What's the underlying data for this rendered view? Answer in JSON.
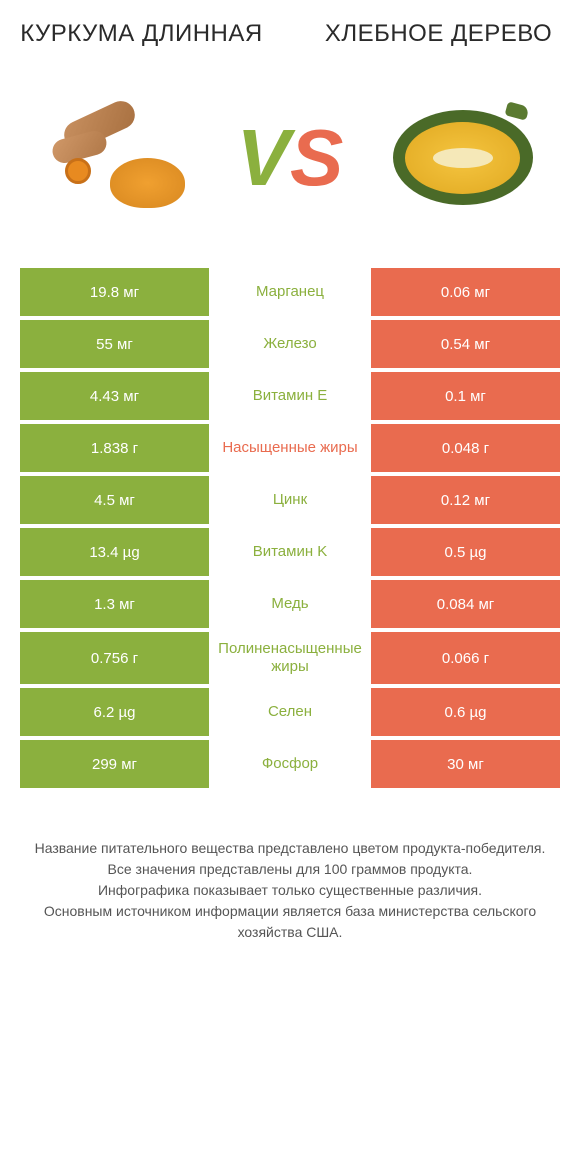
{
  "header": {
    "left_title": "КУРКУМА ДЛИННАЯ",
    "right_title": "ХЛЕБНОЕ ДЕРЕВО"
  },
  "vs": {
    "v": "V",
    "s": "S"
  },
  "colors": {
    "green": "#8bb03e",
    "orange": "#e96b4f",
    "green_text": "#8bb03e",
    "orange_text": "#e96b4f"
  },
  "rows": [
    {
      "left": "19.8 мг",
      "center": "Марганец",
      "right": "0.06 мг",
      "winner": "left"
    },
    {
      "left": "55 мг",
      "center": "Железо",
      "right": "0.54 мг",
      "winner": "left"
    },
    {
      "left": "4.43 мг",
      "center": "Витамин E",
      "right": "0.1 мг",
      "winner": "left"
    },
    {
      "left": "1.838 г",
      "center": "Насыщенные жиры",
      "right": "0.048 г",
      "winner": "right"
    },
    {
      "left": "4.5 мг",
      "center": "Цинк",
      "right": "0.12 мг",
      "winner": "left"
    },
    {
      "left": "13.4 µg",
      "center": "Витамин K",
      "right": "0.5 µg",
      "winner": "left"
    },
    {
      "left": "1.3 мг",
      "center": "Медь",
      "right": "0.084 мг",
      "winner": "left"
    },
    {
      "left": "0.756 г",
      "center": "Полиненасыщенные жиры",
      "right": "0.066 г",
      "winner": "left"
    },
    {
      "left": "6.2 µg",
      "center": "Селен",
      "right": "0.6 µg",
      "winner": "left"
    },
    {
      "left": "299 мг",
      "center": "Фосфор",
      "right": "30 мг",
      "winner": "left"
    }
  ],
  "footer": {
    "line1": "Название питательного вещества представлено цветом продукта-победителя.",
    "line2": "Все значения представлены для 100 граммов продукта.",
    "line3": "Инфографика показывает только существенные различия.",
    "line4": "Основным источником информации является база министерства сельского хозяйства США."
  }
}
